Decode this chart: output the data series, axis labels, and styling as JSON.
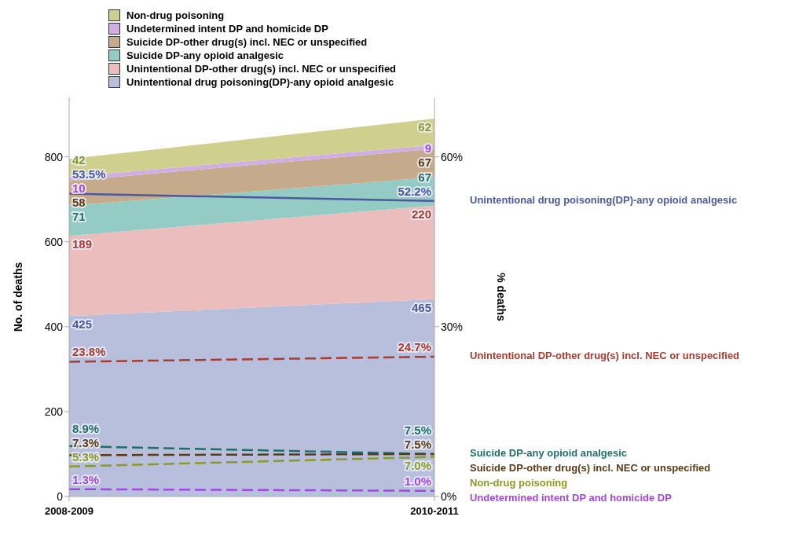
{
  "chart_data": {
    "type": "area",
    "stacked": true,
    "legend": "top left",
    "ylabel": "No. of deaths",
    "y2label": "% deaths",
    "categories": [
      "2008-2009",
      "2010-2011"
    ],
    "ylim": [
      0,
      940
    ],
    "yticks": [
      0,
      200,
      400,
      600,
      800
    ],
    "y2lim": [
      0,
      70.5
    ],
    "y2ticks": [
      {
        "value": 0,
        "label": "0%"
      },
      {
        "value": 30,
        "label": "30%"
      },
      {
        "value": 60,
        "label": "60%"
      }
    ],
    "series": [
      {
        "axis": "y",
        "name": "Unintentional drug poisoning(DP)-any opioid analgesic",
        "color": "#b8bfdc",
        "values": [
          425,
          465
        ],
        "value_labels": [
          "425",
          "465"
        ]
      },
      {
        "axis": "y",
        "name": "Unintentional DP-other drug(s) incl. NEC or unspecified",
        "color": "#ebbdbd",
        "values": [
          189,
          220
        ],
        "value_labels": [
          "189",
          "220"
        ]
      },
      {
        "axis": "y",
        "name": "Suicide DP-any opioid analgesic",
        "color": "#94cbc4",
        "values": [
          71,
          67
        ],
        "value_labels": [
          "71",
          "67"
        ]
      },
      {
        "axis": "y",
        "name": "Suicide DP-other drug(s) incl. NEC or unspecified",
        "color": "#c6aa8c",
        "values": [
          58,
          67
        ],
        "value_labels": [
          "58",
          "67"
        ]
      },
      {
        "axis": "y",
        "name": "Undetermined intent DP and homicide DP",
        "color": "#cfaee3",
        "values": [
          10,
          9
        ],
        "value_labels": [
          "10",
          "9"
        ]
      },
      {
        "axis": "y",
        "name": "Non-drug poisoning",
        "color": "#cfd08e",
        "values": [
          42,
          62
        ],
        "value_labels": [
          "42",
          "62"
        ]
      },
      {
        "type": "line",
        "axis": "y2",
        "name": "Unintentional drug poisoning(DP)-any opioid analgesic",
        "color": "#4b5a9e",
        "line_style": "solid",
        "values": [
          53.5,
          52.2
        ],
        "value_labels": [
          "53.5%",
          "52.2%"
        ]
      },
      {
        "type": "line",
        "axis": "y2",
        "name": "Unintentional DP-other drug(s) incl. NEC or unspecified",
        "color": "#a63c32",
        "line_style": "dashed",
        "values": [
          23.8,
          24.7
        ],
        "value_labels": [
          "23.8%",
          "24.7%"
        ]
      },
      {
        "type": "line",
        "axis": "y2",
        "name": "Suicide DP-any opioid analgesic",
        "color": "#1e6f68",
        "line_style": "dashed",
        "values": [
          8.9,
          7.5
        ],
        "value_labels": [
          "8.9%",
          "7.5%"
        ]
      },
      {
        "type": "line",
        "axis": "y2",
        "name": "Suicide DP-other drug(s) incl. NEC or unspecified",
        "color": "#5c3b14",
        "line_style": "dashed",
        "values": [
          7.3,
          7.5
        ],
        "value_labels": [
          "7.3%",
          "7.5%"
        ]
      },
      {
        "type": "line",
        "axis": "y2",
        "name": "Undetermined intent DP and homicide DP",
        "color": "#a445e6",
        "line_style": "dashed",
        "values": [
          1.3,
          1.0
        ],
        "value_labels": [
          "1.3%",
          "1.0%"
        ]
      },
      {
        "type": "line",
        "axis": "y2",
        "name": "Non-drug poisoning",
        "color": "#8a9a26",
        "line_style": "dashed",
        "values": [
          5.3,
          7.0
        ],
        "value_labels": [
          "5.3%",
          "7.0%"
        ]
      }
    ]
  }
}
